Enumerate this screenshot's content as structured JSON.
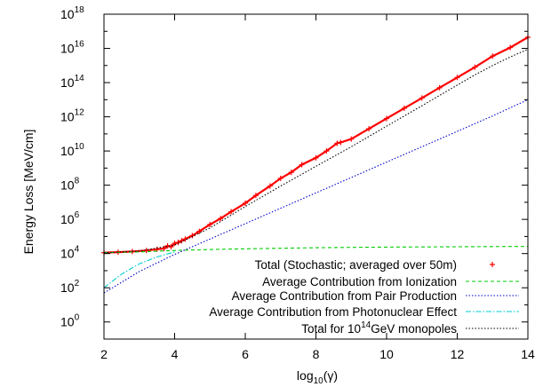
{
  "chart_data": {
    "type": "line",
    "title": "",
    "xlabel": {
      "base": "log",
      "sub": "10",
      "rest": "(γ)"
    },
    "ylabel": "Energy Loss [MeV/cm]",
    "xlim": [
      2,
      14
    ],
    "ylim_log10": [
      -1,
      18
    ],
    "y_scale": "log",
    "grid": false,
    "legend_placement": "bottom-right",
    "x_ticks": [
      "2",
      "4",
      "6",
      "8",
      "10",
      "12",
      "14"
    ],
    "y_ticks": [
      {
        "base": "10",
        "exp": "0",
        "value": 0
      },
      {
        "base": "10",
        "exp": "2",
        "value": 2
      },
      {
        "base": "10",
        "exp": "4",
        "value": 4
      },
      {
        "base": "10",
        "exp": "6",
        "value": 6
      },
      {
        "base": "10",
        "exp": "8",
        "value": 8
      },
      {
        "base": "10",
        "exp": "10",
        "value": 10
      },
      {
        "base": "10",
        "exp": "12",
        "value": 12
      },
      {
        "base": "10",
        "exp": "14",
        "value": 14
      },
      {
        "base": "10",
        "exp": "16",
        "value": 16
      },
      {
        "base": "10",
        "exp": "18",
        "value": 18
      }
    ],
    "series": [
      {
        "name": "Total (Stochastic; averaged over 50m)",
        "style": "points",
        "color": "#ff0000",
        "x": [
          2.0,
          2.4,
          2.8,
          3.2,
          3.5,
          3.7,
          3.8,
          3.9,
          4.0,
          4.1,
          4.2,
          4.3,
          4.5,
          4.7,
          5.0,
          5.3,
          5.6,
          6.0,
          6.3,
          6.7,
          7.0,
          7.3,
          7.6,
          8.0,
          8.3,
          8.6,
          8.7,
          9.0,
          9.5,
          10.0,
          10.5,
          11.0,
          11.5,
          12.0,
          12.5,
          13.0,
          13.5,
          14.0
        ],
        "y": [
          4.05,
          4.08,
          4.12,
          4.18,
          4.25,
          4.3,
          4.45,
          4.4,
          4.6,
          4.65,
          4.75,
          4.85,
          5.05,
          5.3,
          5.7,
          6.05,
          6.45,
          6.95,
          7.4,
          7.95,
          8.4,
          8.75,
          9.2,
          9.6,
          10.0,
          10.45,
          10.5,
          10.7,
          11.3,
          11.9,
          12.5,
          13.1,
          13.7,
          14.3,
          14.9,
          15.55,
          16.05,
          16.65
        ]
      },
      {
        "name": "Average Contribution from Ionization",
        "style": "dashed",
        "color": "#00cc00",
        "x": [
          2,
          3,
          4,
          5,
          6,
          7,
          8,
          9,
          10,
          11,
          12,
          13,
          14
        ],
        "y": [
          4.05,
          4.1,
          4.18,
          4.24,
          4.28,
          4.31,
          4.34,
          4.36,
          4.38,
          4.39,
          4.4,
          4.41,
          4.42
        ]
      },
      {
        "name": "Average Contribution from Pair Production",
        "style": "dotted",
        "color": "#0000cc",
        "x": [
          2,
          3,
          4,
          5,
          6,
          7,
          8,
          9,
          10,
          11,
          12,
          13,
          14
        ],
        "y": [
          1.7,
          2.95,
          3.95,
          4.85,
          5.75,
          6.65,
          7.55,
          8.45,
          9.35,
          10.25,
          11.15,
          12.05,
          13.0
        ]
      },
      {
        "name": "Average Contribution from Photonuclear Effect",
        "style": "dashdot",
        "color": "#00cccc",
        "x": [
          2,
          2.5,
          3,
          3.5,
          4
        ],
        "y": [
          2.0,
          2.8,
          3.4,
          3.8,
          4.1
        ]
      },
      {
        "name": "Total for 10^14GeV monopoles",
        "style": "dotted",
        "color": "#000000",
        "x": [
          2,
          3,
          4,
          5,
          6,
          7,
          8,
          9,
          10,
          11,
          12,
          12.5,
          13,
          13.5,
          14
        ],
        "y": [
          4.05,
          4.15,
          4.5,
          5.5,
          6.75,
          7.95,
          9.1,
          10.25,
          11.45,
          12.65,
          13.85,
          14.45,
          15.0,
          15.5,
          15.95
        ]
      }
    ]
  },
  "legend": {
    "entries": [
      {
        "text": "Total (Stochastic; averaged over 50m)",
        "key": "series0"
      },
      {
        "text": "Average Contribution from Ionization",
        "key": "series1"
      },
      {
        "text": "Average Contribution from Pair Production",
        "key": "series2"
      },
      {
        "text": "Average Contribution from Photonuclear Effect",
        "key": "series3"
      }
    ],
    "last_entry": {
      "before": "Total for 10",
      "exp": "14",
      "after": "GeV monopoles"
    }
  }
}
